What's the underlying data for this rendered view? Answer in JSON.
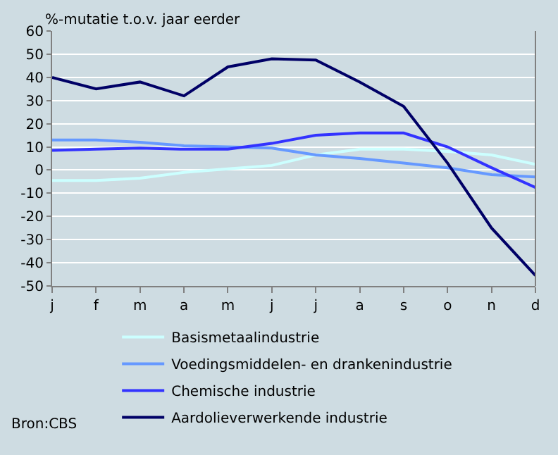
{
  "chart_data": {
    "type": "line",
    "ylabel": "%-mutatie t.o.v. jaar eerder",
    "categories": [
      "j",
      "f",
      "m",
      "a",
      "m",
      "j",
      "j",
      "a",
      "s",
      "o",
      "n",
      "d"
    ],
    "series": [
      {
        "name": "Basismetaalindustrie",
        "color": "#ccffff",
        "values": [
          -4.5,
          -4.5,
          -3.5,
          -1,
          0.5,
          2,
          6.5,
          9,
          9,
          8,
          6.5,
          2.5
        ]
      },
      {
        "name": "Voedingsmiddelen- en drankenindustrie",
        "color": "#6699ff",
        "values": [
          13,
          13,
          12,
          10.5,
          10,
          9.5,
          6.5,
          5,
          3,
          1,
          -2,
          -3
        ]
      },
      {
        "name": "Chemische industrie",
        "color": "#3333ff",
        "values": [
          8.5,
          9,
          9.5,
          9,
          9,
          11.5,
          15,
          16,
          16,
          10,
          1,
          -7.5
        ]
      },
      {
        "name": "Aardolieverwerkende industrie",
        "color": "#000066",
        "values": [
          40,
          35,
          38,
          32,
          44.5,
          48,
          47.5,
          38,
          27.5,
          3,
          -25,
          -45.5
        ]
      }
    ],
    "ylim": [
      -50,
      60
    ],
    "yticks": [
      -50,
      -40,
      -30,
      -20,
      -10,
      0,
      10,
      20,
      30,
      40,
      50,
      60
    ],
    "grid": "y",
    "legend": "bottom",
    "marker": "none",
    "line_style": "solid",
    "annotations": [
      "Bron:CBS"
    ]
  }
}
